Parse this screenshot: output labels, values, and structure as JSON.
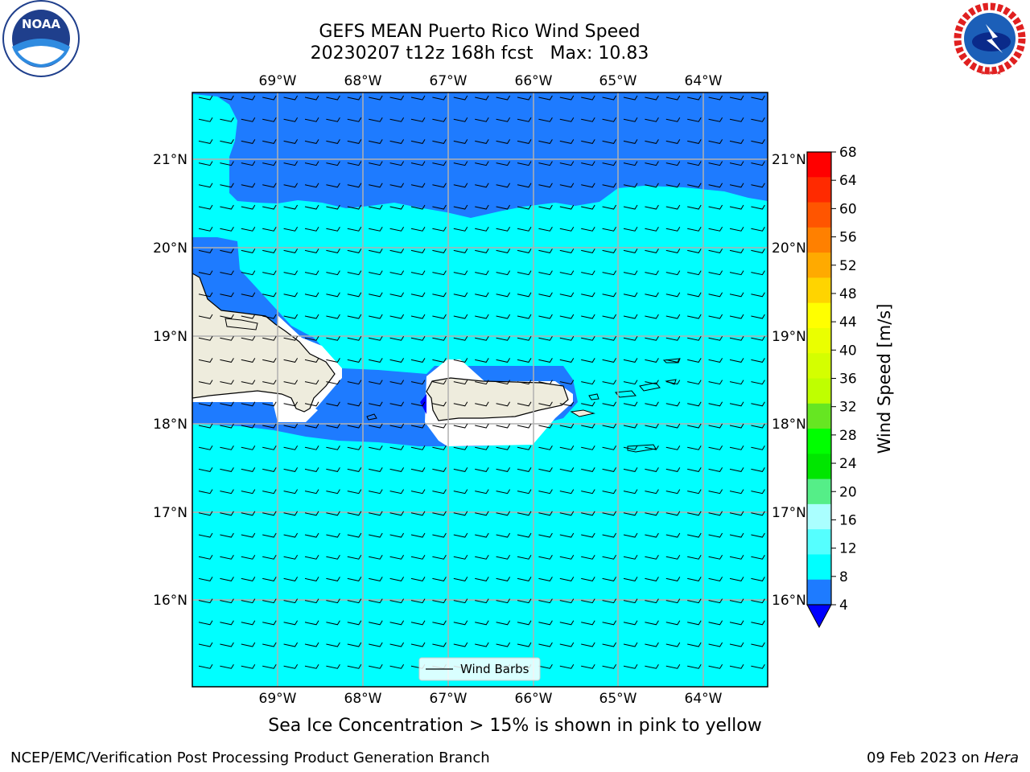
{
  "title": {
    "line1": "GEFS MEAN Puerto Rico Wind Speed",
    "line2": "20230207 t12z 168h fcst   Max: 10.83"
  },
  "map": {
    "lon_labels": [
      "69°W",
      "68°W",
      "67°W",
      "66°W",
      "65°W",
      "64°W"
    ],
    "lat_labels": [
      "21°N",
      "20°N",
      "19°N",
      "18°N",
      "17°N",
      "16°N"
    ],
    "legend_label": "Wind Barbs",
    "colors": {
      "land": "#eeecdd",
      "ice_mask": "#ffffff",
      "speed_4_8": "#1e7bff",
      "speed_8_12": "#00ffff",
      "speed_lt_4": "#0000ff"
    }
  },
  "colorbar": {
    "title": "Wind Speed [m/s]",
    "ticks": [
      "68",
      "64",
      "60",
      "56",
      "52",
      "48",
      "44",
      "40",
      "36",
      "32",
      "28",
      "24",
      "20",
      "16",
      "12",
      "8",
      "4"
    ],
    "colors": [
      "#ff0000",
      "#ff2a00",
      "#ff5500",
      "#ff8000",
      "#ffaa00",
      "#ffd400",
      "#ffff00",
      "#eaff00",
      "#d4ff00",
      "#bfff00",
      "#66e622",
      "#00ff00",
      "#00e600",
      "#55ee88",
      "#aaffff",
      "#55ffff",
      "#00ffff",
      "#1e7bff"
    ],
    "under_color": "#0000ff"
  },
  "subnote": "Sea Ice Concentration > 15% is shown in pink to yellow",
  "footer": {
    "left": "NCEP/EMC/Verification Post Processing Product Generation Branch",
    "date": "09 Feb 2023 on",
    "machine": "Hera"
  },
  "logos": {
    "noaa": "NOAA",
    "nws": "NATIONAL WEATHER SERVICE"
  }
}
